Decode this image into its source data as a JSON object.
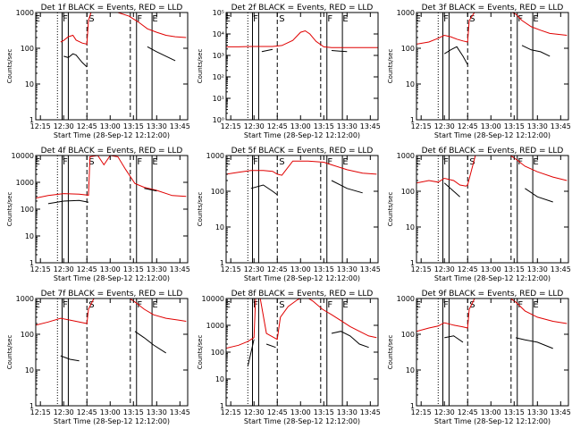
{
  "figure": {
    "xlabel": "Start Time (28-Sep-12 12:12:00)",
    "ylabel": "Counts/sec",
    "x_tick_labels": [
      "12:15",
      "12:30",
      "12:45",
      "13:00",
      "13:15",
      "13:30",
      "13:45"
    ],
    "colors": {
      "events": "#000000",
      "lld": "#e00000",
      "axes": "#000000"
    },
    "marker_labels": [
      "E",
      "F",
      "S",
      "F",
      "E"
    ]
  },
  "chart_data": [
    {
      "type": "line",
      "title": "Det 1f BLACK = Events, RED = LLD",
      "xlim": [
        "12:12",
        "13:50"
      ],
      "yscale": "log",
      "ylim": [
        1,
        1000
      ],
      "y_tick_labels": [
        "1",
        "10",
        "100",
        "1000"
      ],
      "x_time": [
        "12:28",
        "12:30",
        "12:33",
        "12:36",
        "12:38",
        "12:42",
        "12:45",
        "12:46",
        "12:48",
        "12:52",
        "12:58",
        "13:05",
        "13:12",
        "13:18",
        "13:24",
        "13:30",
        "13:36",
        "13:42",
        "13:49"
      ],
      "series": [
        {
          "values": [
            150,
            165,
            210,
            230,
            170,
            140,
            130,
            600,
            1100,
            1400,
            1200,
            1000,
            800,
            550,
            350,
            280,
            230,
            210,
            200
          ]
        },
        {
          "values": [
            null,
            60,
            55,
            70,
            65,
            40,
            30,
            null,
            null,
            null,
            null,
            null,
            null,
            null,
            110,
            80,
            60,
            45,
            null
          ]
        }
      ]
    },
    {
      "type": "line",
      "title": "Det 2f BLACK = Events, RED = LLD",
      "xlim": [
        "12:12",
        "13:50"
      ],
      "yscale": "log",
      "ylim": [
        1,
        100000
      ],
      "y_tick_labels": [
        "10⁰",
        "10¹",
        "10²",
        "10³",
        "10⁴",
        "10⁵"
      ],
      "x_time": [
        "12:12",
        "12:20",
        "12:28",
        "12:35",
        "12:42",
        "12:48",
        "12:55",
        "13:00",
        "13:03",
        "13:06",
        "13:10",
        "13:15",
        "13:20",
        "13:30",
        "13:40",
        "13:50"
      ],
      "series": [
        {
          "values": [
            2500,
            2500,
            2600,
            2600,
            2600,
            2900,
            5000,
            12000,
            14000,
            10000,
            4500,
            2500,
            2300,
            2300,
            2300,
            2300
          ]
        },
        {
          "values": [
            null,
            null,
            null,
            1500,
            1900,
            null,
            null,
            null,
            null,
            null,
            null,
            null,
            1700,
            1500,
            null,
            null
          ]
        }
      ]
    },
    {
      "type": "line",
      "title": "Det 3f BLACK = Events, RED = LLD",
      "xlim": [
        "12:12",
        "13:50"
      ],
      "yscale": "log",
      "ylim": [
        1,
        1000
      ],
      "y_tick_labels": [
        "1",
        "10",
        "100",
        "1000"
      ],
      "x_time": [
        "12:12",
        "12:20",
        "12:26",
        "12:30",
        "12:34",
        "12:38",
        "12:42",
        "12:45",
        "12:46",
        "12:50",
        "13:00",
        "13:10",
        "13:16",
        "13:20",
        "13:26",
        "13:32",
        "13:38",
        "13:49"
      ],
      "series": [
        {
          "values": [
            130,
            150,
            190,
            230,
            210,
            180,
            160,
            150,
            600,
            1100,
            1300,
            1200,
            900,
            600,
            400,
            320,
            260,
            230
          ]
        },
        {
          "values": [
            null,
            null,
            null,
            70,
            90,
            110,
            60,
            35,
            null,
            null,
            null,
            null,
            null,
            120,
            90,
            80,
            60,
            null
          ]
        }
      ]
    },
    {
      "type": "line",
      "title": "Det 4f BLACK = Events, RED = LLD",
      "xlim": [
        "12:12",
        "13:50"
      ],
      "yscale": "log",
      "ylim": [
        1,
        10000
      ],
      "y_tick_labels": [
        "1",
        "10",
        "100",
        "1000",
        "10000"
      ],
      "x_time": [
        "12:12",
        "12:20",
        "12:30",
        "12:40",
        "12:46",
        "12:47",
        "12:52",
        "12:56",
        "13:00",
        "13:05",
        "13:10",
        "13:16",
        "13:22",
        "13:30",
        "13:40",
        "13:49"
      ],
      "series": [
        {
          "values": [
            260,
            320,
            380,
            360,
            330,
            9000,
            10000,
            4500,
            10000,
            9000,
            3000,
            900,
            650,
            500,
            320,
            300
          ]
        },
        {
          "values": [
            null,
            160,
            200,
            210,
            180,
            null,
            null,
            null,
            null,
            null,
            null,
            null,
            600,
            480,
            null,
            null
          ]
        }
      ]
    },
    {
      "type": "line",
      "title": "Det 5f BLACK = Events, RED = LLD",
      "xlim": [
        "12:12",
        "13:50"
      ],
      "yscale": "log",
      "ylim": [
        1,
        1000
      ],
      "y_tick_labels": [
        "1",
        "10",
        "100",
        "1000"
      ],
      "x_time": [
        "12:12",
        "12:20",
        "12:28",
        "12:36",
        "12:42",
        "12:45",
        "12:48",
        "12:55",
        "13:05",
        "13:15",
        "13:20",
        "13:30",
        "13:40",
        "13:49"
      ],
      "series": [
        {
          "values": [
            300,
            340,
            380,
            380,
            360,
            300,
            280,
            700,
            700,
            650,
            550,
            400,
            320,
            300
          ]
        },
        {
          "values": [
            null,
            null,
            120,
            150,
            100,
            80,
            null,
            null,
            null,
            null,
            200,
            120,
            90,
            null
          ]
        }
      ]
    },
    {
      "type": "line",
      "title": "Det 6f BLACK = Events, RED = LLD",
      "xlim": [
        "12:12",
        "13:50"
      ],
      "yscale": "log",
      "ylim": [
        1,
        1000
      ],
      "y_tick_labels": [
        "1",
        "10",
        "100",
        "1000"
      ],
      "x_time": [
        "12:12",
        "12:20",
        "12:26",
        "12:30",
        "12:36",
        "12:40",
        "12:44",
        "12:45",
        "12:50",
        "13:00",
        "13:10",
        "13:16",
        "13:22",
        "13:30",
        "13:40",
        "13:49"
      ],
      "series": [
        {
          "values": [
            170,
            200,
            180,
            230,
            200,
            150,
            140,
            150,
            1000,
            1500,
            1200,
            800,
            500,
            350,
            250,
            200
          ]
        },
        {
          "values": [
            null,
            null,
            null,
            170,
            100,
            70,
            null,
            null,
            null,
            null,
            null,
            null,
            120,
            70,
            50,
            null
          ]
        }
      ]
    },
    {
      "type": "line",
      "title": "Det 7f BLACK = Events, RED = LLD",
      "xlim": [
        "12:12",
        "13:50"
      ],
      "yscale": "log",
      "ylim": [
        1,
        1000
      ],
      "y_tick_labels": [
        "1",
        "10",
        "100",
        "1000"
      ],
      "x_time": [
        "12:12",
        "12:20",
        "12:28",
        "12:34",
        "12:40",
        "12:45",
        "12:46",
        "12:50",
        "13:00",
        "13:10",
        "13:16",
        "13:22",
        "13:28",
        "13:36",
        "13:44",
        "13:49"
      ],
      "series": [
        {
          "values": [
            180,
            220,
            280,
            250,
            220,
            200,
            500,
            1100,
            1400,
            1200,
            800,
            500,
            350,
            280,
            250,
            230
          ]
        },
        {
          "values": [
            null,
            null,
            25,
            20,
            18,
            null,
            null,
            null,
            null,
            null,
            120,
            80,
            50,
            30,
            null,
            null
          ]
        }
      ]
    },
    {
      "type": "line",
      "title": "Det 8f BLACK = Events, RED = LLD",
      "xlim": [
        "12:12",
        "13:50"
      ],
      "yscale": "log",
      "ylim": [
        1,
        10000
      ],
      "y_tick_labels": [
        "1",
        "10",
        "100",
        "1000",
        "10000"
      ],
      "x_time": [
        "12:12",
        "12:20",
        "12:26",
        "12:30",
        "12:31",
        "12:34",
        "12:38",
        "12:44",
        "12:45",
        "12:47",
        "12:52",
        "12:58",
        "13:03",
        "13:08",
        "13:14",
        "13:20",
        "13:26",
        "13:32",
        "13:38",
        "13:44",
        "13:49"
      ],
      "series": [
        {
          "values": [
            140,
            180,
            250,
            350,
            10000,
            10000,
            500,
            320,
            300,
            2000,
            5000,
            9000,
            12000,
            8000,
            4000,
            2500,
            1500,
            900,
            600,
            400,
            350
          ]
        },
        {
          "values": [
            null,
            null,
            30,
            300,
            null,
            null,
            200,
            150,
            null,
            null,
            null,
            null,
            null,
            null,
            null,
            500,
            600,
            400,
            200,
            150,
            null
          ]
        }
      ]
    },
    {
      "type": "line",
      "title": "Det 9f BLACK = Events, RED = LLD",
      "xlim": [
        "12:12",
        "13:50"
      ],
      "yscale": "log",
      "ylim": [
        1,
        1000
      ],
      "y_tick_labels": [
        "1",
        "10",
        "100",
        "1000"
      ],
      "x_time": [
        "12:12",
        "12:20",
        "12:26",
        "12:30",
        "12:36",
        "12:42",
        "12:45",
        "12:46",
        "12:50",
        "13:00",
        "13:10",
        "13:16",
        "13:22",
        "13:30",
        "13:40",
        "13:49"
      ],
      "series": [
        {
          "values": [
            120,
            150,
            170,
            210,
            180,
            160,
            150,
            500,
            1100,
            1500,
            1200,
            800,
            450,
            300,
            230,
            200
          ]
        },
        {
          "values": [
            null,
            null,
            null,
            80,
            90,
            60,
            null,
            null,
            null,
            null,
            null,
            80,
            70,
            60,
            40,
            null
          ]
        }
      ]
    }
  ]
}
